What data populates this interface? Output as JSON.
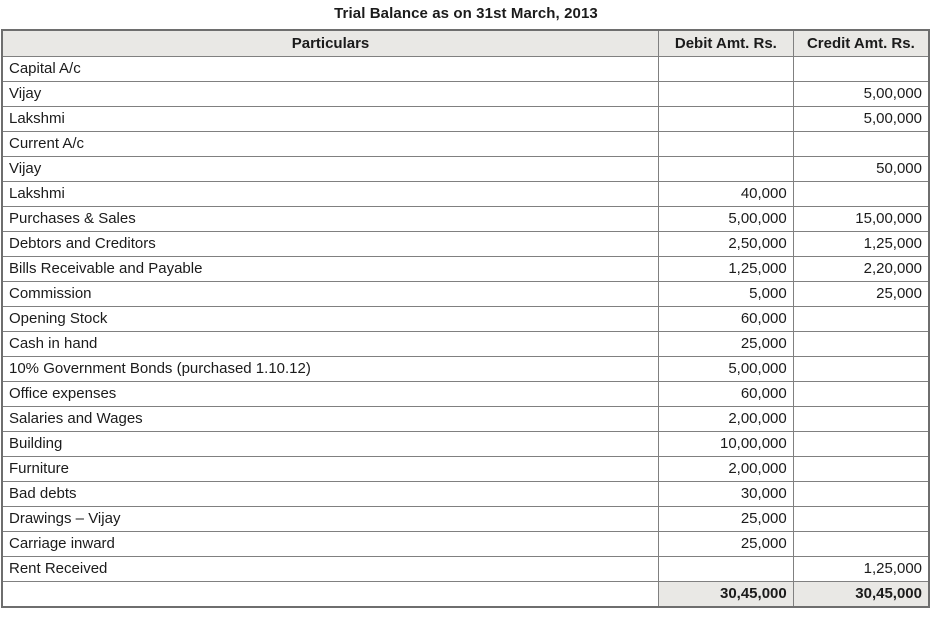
{
  "title": "Trial Balance as on 31st March, 2013",
  "table": {
    "columns": [
      "Particulars",
      "Debit Amt. Rs.",
      "Credit Amt. Rs."
    ],
    "rows": [
      {
        "particulars": "Capital A/c",
        "debit": "",
        "credit": ""
      },
      {
        "particulars": "Vijay",
        "debit": "",
        "credit": "5,00,000"
      },
      {
        "particulars": "Lakshmi",
        "debit": "",
        "credit": "5,00,000"
      },
      {
        "particulars": "Current A/c",
        "debit": "",
        "credit": ""
      },
      {
        "particulars": "Vijay",
        "debit": "",
        "credit": "50,000"
      },
      {
        "particulars": "Lakshmi",
        "debit": "40,000",
        "credit": ""
      },
      {
        "particulars": "Purchases & Sales",
        "debit": "5,00,000",
        "credit": "15,00,000"
      },
      {
        "particulars": "Debtors and Creditors",
        "debit": "2,50,000",
        "credit": "1,25,000"
      },
      {
        "particulars": "Bills Receivable and Payable",
        "debit": "1,25,000",
        "credit": "2,20,000"
      },
      {
        "particulars": "Commission",
        "debit": "5,000",
        "credit": "25,000"
      },
      {
        "particulars": "Opening Stock",
        "debit": "60,000",
        "credit": ""
      },
      {
        "particulars": "Cash in hand",
        "debit": "25,000",
        "credit": ""
      },
      {
        "particulars": "10% Government Bonds (purchased 1.10.12)",
        "debit": "5,00,000",
        "credit": ""
      },
      {
        "particulars": "Office expenses",
        "debit": "60,000",
        "credit": ""
      },
      {
        "particulars": "Salaries and Wages",
        "debit": "2,00,000",
        "credit": ""
      },
      {
        "particulars": "Building",
        "debit": "10,00,000",
        "credit": ""
      },
      {
        "particulars": "Furniture",
        "debit": "2,00,000",
        "credit": ""
      },
      {
        "particulars": "Bad debts",
        "debit": "30,000",
        "credit": ""
      },
      {
        "particulars": "Drawings – Vijay",
        "debit": "25,000",
        "credit": ""
      },
      {
        "particulars": "Carriage inward",
        "debit": "25,000",
        "credit": ""
      },
      {
        "particulars": "Rent Received",
        "debit": "",
        "credit": "1,25,000"
      }
    ],
    "total": {
      "particulars": "",
      "debit": "30,45,000",
      "credit": "30,45,000"
    }
  },
  "colors": {
    "header_bg": "#e9e8e5",
    "grid_border": "#808080",
    "outer_border": "#6e6e6e",
    "text": "#1b1b1b"
  }
}
